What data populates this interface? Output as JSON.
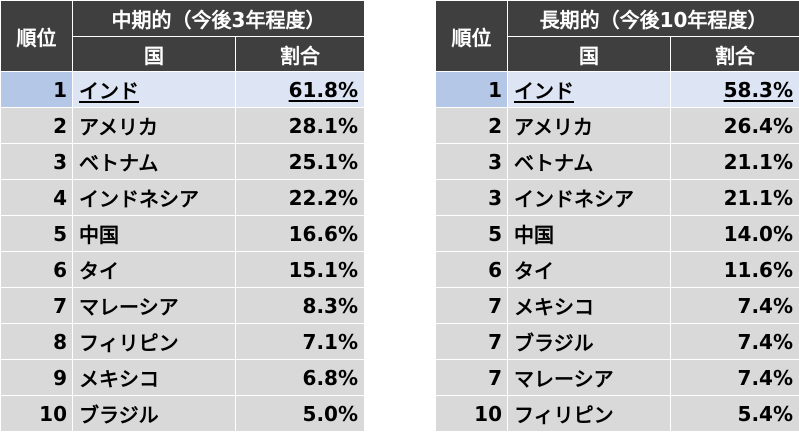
{
  "midterm": {
    "title": "中期的（今後3年程度）",
    "col_rank": "順位",
    "col_country": "国",
    "col_share": "割合",
    "rows": [
      {
        "rank": "1",
        "country": "インド",
        "share": "61.8%"
      },
      {
        "rank": "2",
        "country": "アメリカ",
        "share": "28.1%"
      },
      {
        "rank": "3",
        "country": "ベトナム",
        "share": "25.1%"
      },
      {
        "rank": "4",
        "country": "インドネシア",
        "share": "22.2%"
      },
      {
        "rank": "5",
        "country": "中国",
        "share": "16.6%"
      },
      {
        "rank": "6",
        "country": "タイ",
        "share": "15.1%"
      },
      {
        "rank": "7",
        "country": "マレーシア",
        "share": "8.3%"
      },
      {
        "rank": "8",
        "country": "フィリピン",
        "share": "7.1%"
      },
      {
        "rank": "9",
        "country": "メキシコ",
        "share": "6.8%"
      },
      {
        "rank": "10",
        "country": "ブラジル",
        "share": "5.0%"
      }
    ]
  },
  "longterm": {
    "title": "長期的（今後10年程度）",
    "col_rank": "順位",
    "col_country": "国",
    "col_share": "割合",
    "rows": [
      {
        "rank": "1",
        "country": "インド",
        "share": "58.3%"
      },
      {
        "rank": "2",
        "country": "アメリカ",
        "share": "26.4%"
      },
      {
        "rank": "3",
        "country": "ベトナム",
        "share": "21.1%"
      },
      {
        "rank": "3",
        "country": "インドネシア",
        "share": "21.1%"
      },
      {
        "rank": "5",
        "country": "中国",
        "share": "14.0%"
      },
      {
        "rank": "6",
        "country": "タイ",
        "share": "11.6%"
      },
      {
        "rank": "7",
        "country": "メキシコ",
        "share": "7.4%"
      },
      {
        "rank": "7",
        "country": "ブラジル",
        "share": "7.4%"
      },
      {
        "rank": "7",
        "country": "マレーシア",
        "share": "7.4%"
      },
      {
        "rank": "10",
        "country": "フィリピン",
        "share": "5.4%"
      }
    ]
  }
}
